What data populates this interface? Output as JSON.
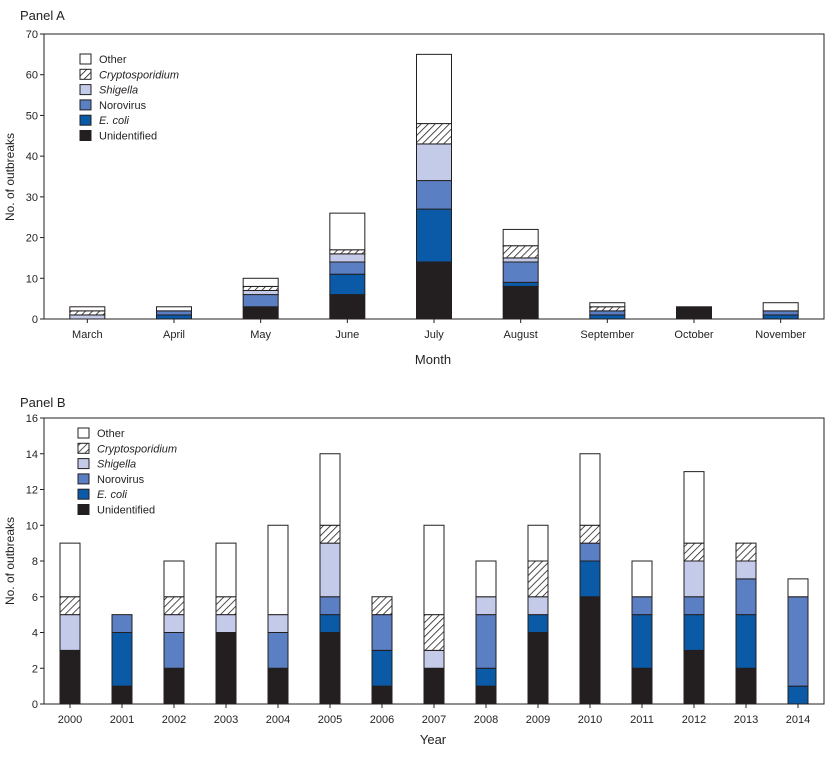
{
  "chart_data": [
    {
      "type": "bar",
      "stacked": true,
      "panel_label": "Panel A",
      "title": "",
      "xlabel": "Month",
      "ylabel": "No. of outbreaks",
      "ylim": [
        0,
        70
      ],
      "yticks": [
        0,
        10,
        20,
        30,
        40,
        50,
        60,
        70
      ],
      "grid": false,
      "legend_position": "top-left",
      "categories": [
        "March",
        "April",
        "May",
        "June",
        "July",
        "August",
        "September",
        "October",
        "November"
      ],
      "series": [
        {
          "name": "Unidentified",
          "key": "unidentified",
          "values": [
            0,
            0,
            3,
            6,
            14,
            8,
            0,
            3,
            0
          ]
        },
        {
          "name": "E. coli",
          "key": "ecoli",
          "values": [
            0,
            1,
            0,
            5,
            13,
            1,
            1,
            0,
            1
          ]
        },
        {
          "name": "Norovirus",
          "key": "norovirus",
          "values": [
            0,
            1,
            3,
            3,
            7,
            5,
            1,
            0,
            1
          ]
        },
        {
          "name": "Shigella",
          "key": "shigella",
          "values": [
            1,
            0,
            1,
            2,
            9,
            1,
            0,
            0,
            0
          ]
        },
        {
          "name": "Cryptosporidium",
          "key": "crypto",
          "values": [
            1,
            0,
            1,
            1,
            5,
            3,
            1,
            0,
            0
          ]
        },
        {
          "name": "Other",
          "key": "other",
          "values": [
            1,
            1,
            2,
            9,
            17,
            4,
            1,
            0,
            2
          ]
        }
      ]
    },
    {
      "type": "bar",
      "stacked": true,
      "panel_label": "Panel B",
      "title": "",
      "xlabel": "Year",
      "ylabel": "No. of outbreaks",
      "ylim": [
        0,
        16
      ],
      "yticks": [
        0,
        2,
        4,
        6,
        8,
        10,
        12,
        14,
        16
      ],
      "grid": false,
      "legend_position": "top-left",
      "categories": [
        "2000",
        "2001",
        "2002",
        "2003",
        "2004",
        "2005",
        "2006",
        "2007",
        "2008",
        "2009",
        "2010",
        "2011",
        "2012",
        "2013",
        "2014"
      ],
      "series": [
        {
          "name": "Unidentified",
          "key": "unidentified",
          "values": [
            3,
            1,
            2,
            4,
            2,
            4,
            1,
            2,
            1,
            4,
            6,
            2,
            3,
            2,
            0
          ]
        },
        {
          "name": "E. coli",
          "key": "ecoli",
          "values": [
            0,
            3,
            0,
            0,
            0,
            1,
            2,
            0,
            1,
            1,
            2,
            3,
            2,
            3,
            1
          ]
        },
        {
          "name": "Norovirus",
          "key": "norovirus",
          "values": [
            0,
            1,
            2,
            0,
            2,
            1,
            2,
            0,
            3,
            0,
            1,
            1,
            1,
            2,
            5
          ]
        },
        {
          "name": "Shigella",
          "key": "shigella",
          "values": [
            2,
            0,
            1,
            1,
            1,
            3,
            0,
            1,
            1,
            1,
            0,
            0,
            2,
            1,
            0
          ]
        },
        {
          "name": "Cryptosporidium",
          "key": "crypto",
          "values": [
            1,
            0,
            1,
            1,
            0,
            1,
            1,
            2,
            0,
            2,
            1,
            0,
            1,
            1,
            0
          ]
        },
        {
          "name": "Other",
          "key": "other",
          "values": [
            3,
            0,
            2,
            3,
            5,
            4,
            0,
            5,
            2,
            2,
            4,
            2,
            4,
            0,
            1
          ]
        }
      ]
    }
  ],
  "legend": {
    "items": [
      {
        "key": "other",
        "label": "Other",
        "italic": false
      },
      {
        "key": "crypto",
        "label": "Cryptosporidium",
        "italic": true
      },
      {
        "key": "shigella",
        "label": "Shigella",
        "italic": true
      },
      {
        "key": "norovirus",
        "label": "Norovirus",
        "italic": false
      },
      {
        "key": "ecoli",
        "label": "E. coli",
        "italic": true
      },
      {
        "key": "unidentified",
        "label": "Unidentified",
        "italic": false
      }
    ]
  },
  "colors": {
    "unidentified": "#231f20",
    "ecoli": "#0b5aa8",
    "norovirus": "#5b7fc3",
    "shigella": "#c3cbe9",
    "crypto_hatch": "#231f20",
    "other": "#ffffff",
    "stroke": "#231f20"
  }
}
